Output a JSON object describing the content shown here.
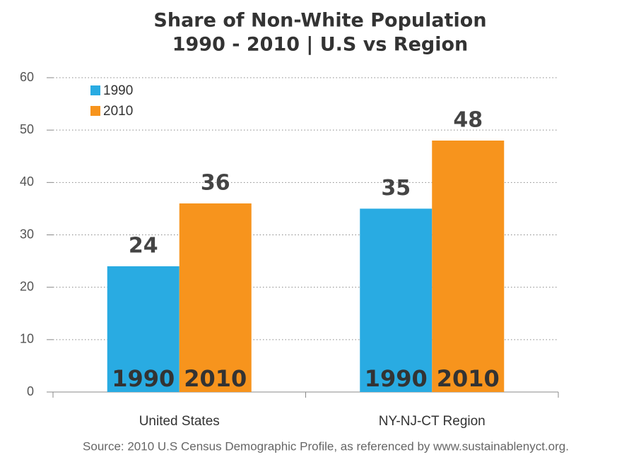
{
  "chart_data": {
    "type": "bar",
    "title": "Share of Non-White Population",
    "subtitle": "1990 - 2010 | U.S vs Region",
    "categories": [
      "United States",
      "NY-NJ-CT Region"
    ],
    "series": [
      {
        "name": "1990",
        "color": "#29abe2",
        "values": [
          24,
          35
        ]
      },
      {
        "name": "2010",
        "color": "#f7941d",
        "values": [
          36,
          48
        ]
      }
    ],
    "ylim": [
      0,
      60
    ],
    "yticks": [
      0,
      10,
      20,
      30,
      40,
      50,
      60
    ],
    "grid": true,
    "legend": "top-left",
    "source": "Source:  2010 U.S Census Demographic Profile, as referenced by www.sustainablenyct.org."
  }
}
